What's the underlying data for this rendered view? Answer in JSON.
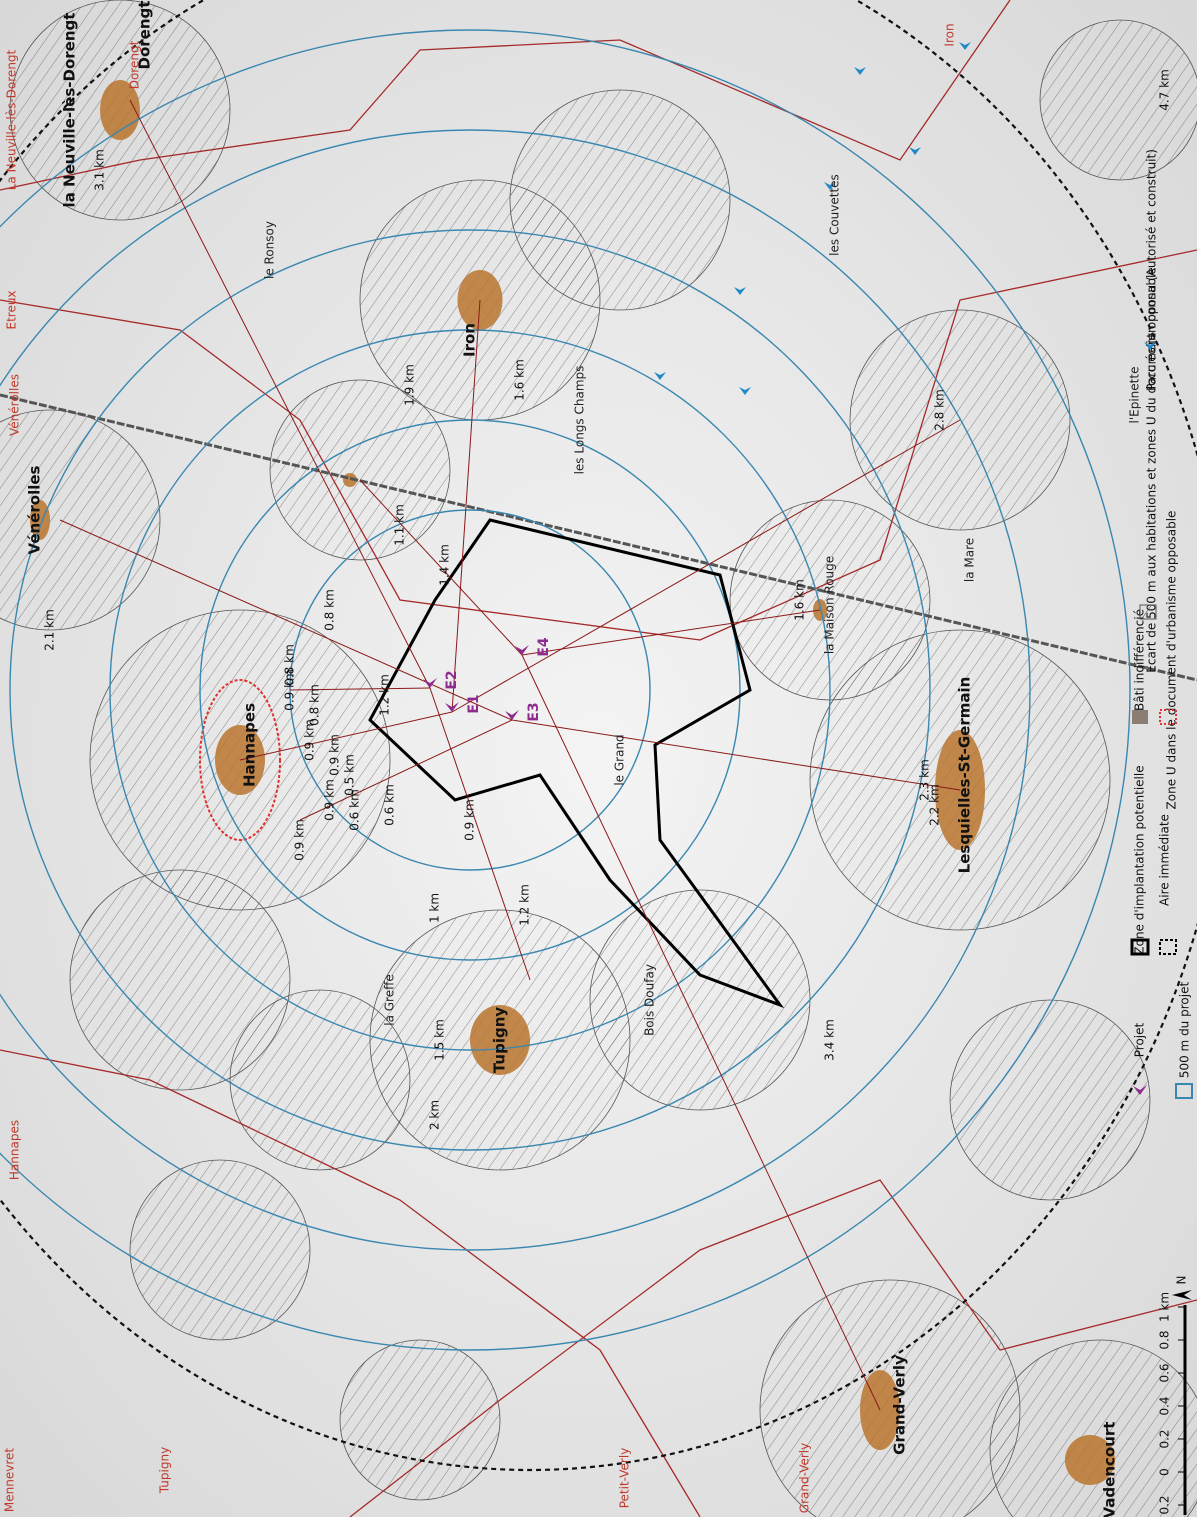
{
  "map": {
    "places": [
      "la Neuville-lès-Dorengt",
      "Dorengt",
      "Vénérolles",
      "Hannapes",
      "Tupigny",
      "Iron",
      "Lesquielles-St-Germain",
      "Grand-Verly",
      "Vadencourt"
    ],
    "localities": [
      "le Ronsoy",
      "les Longs Champs",
      "la Maison Rouge",
      "la Mare",
      "l'Epinette",
      "la Greffe",
      "le Grand",
      "Bois Doufay",
      "les Couvettes"
    ],
    "communes": [
      "La Neuville-lès-Dorengt",
      "Dorengt",
      "Etreux",
      "Vénérolles",
      "Hannapes",
      "Mennevret",
      "Tupigny",
      "Petit-Verly",
      "Grand-Verly",
      "Iron"
    ],
    "rings": [
      "1 km",
      "1.5 km",
      "2 km"
    ],
    "distances": [
      "0.8 km",
      "0.9 km",
      "0.8 km",
      "0.8 km",
      "0.9 km",
      "0.9 km",
      "0.9 km",
      "0.9 km",
      "1.2 km",
      "0.5 km",
      "0.6 km",
      "0.6 km",
      "0.9 km",
      "1.2 km",
      "1.4 km",
      "1.1 km",
      "1.9 km",
      "1.6 km",
      "2.8 km",
      "1.6 km",
      "2.3 km",
      "2.2 km",
      "2.1 km",
      "3.1 km",
      "4.7 km",
      "3.4 km"
    ],
    "turbines": [
      "E1",
      "E2",
      "E3",
      "E4"
    ]
  },
  "legend": {
    "items": [
      "Projet",
      "500 m du projet",
      "Zone d'implantation potentielle",
      "Aire immédiate",
      "Bâti indifférencié",
      "Zone U dans le document d'urbanisme opposable",
      "Ecart de 500 m aux habitations et zones U du document opposable",
      "Parc éolien connu (Autorisé et construit)"
    ]
  },
  "scale": {
    "ticks": [
      "0.2",
      "0",
      "0.2",
      "0.4",
      "0.6",
      "0.8",
      "1 km"
    ],
    "north": "N"
  }
}
